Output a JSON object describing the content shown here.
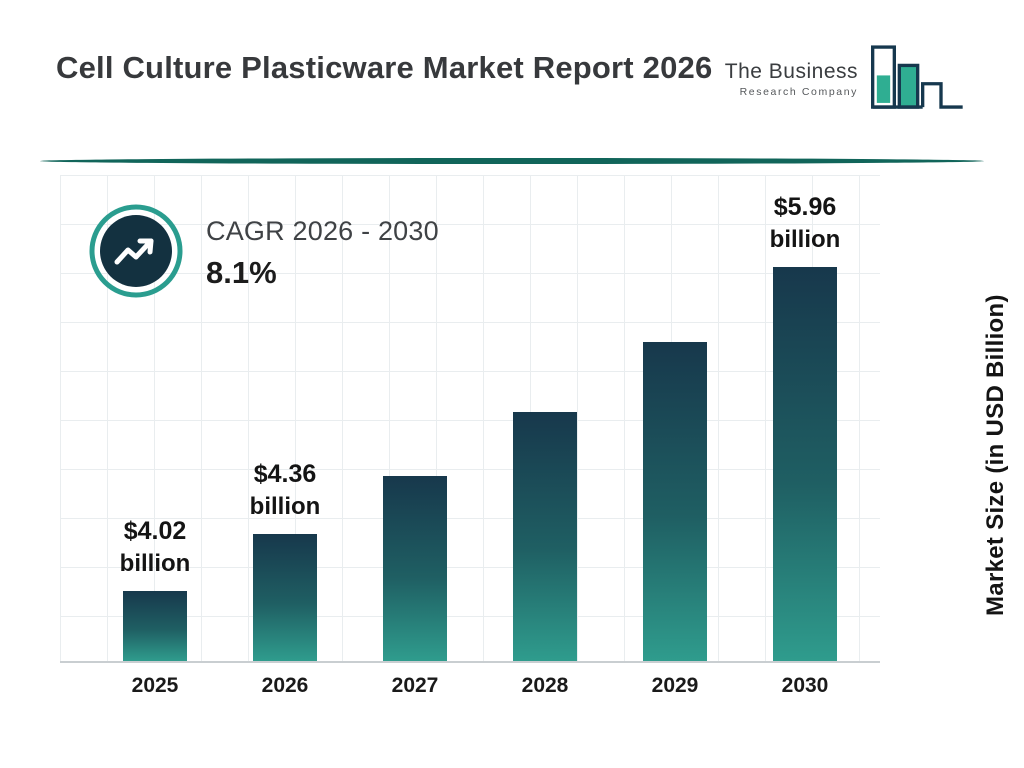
{
  "header": {
    "title": "Cell Culture Plasticware Market Report 2026"
  },
  "logo": {
    "line1": "The Business",
    "line2": "Research Company"
  },
  "cagr": {
    "label": "CAGR 2026 - 2030",
    "value": "8.1%"
  },
  "ylabel": "Market Size (in USD Billion)",
  "colors": {
    "accent_teal": "#2a9d8f",
    "dark_navy": "#17384c",
    "bar_gradient_top": "#17384c",
    "bar_gradient_bottom": "#2f9c8d",
    "divider": "#11655a"
  },
  "chart_data": {
    "type": "bar",
    "title": "Cell Culture Plasticware Market Report 2026",
    "xlabel": "",
    "ylabel": "Market Size (in USD Billion)",
    "categories": [
      "2025",
      "2026",
      "2027",
      "2028",
      "2029",
      "2030"
    ],
    "values": [
      4.02,
      4.36,
      4.71,
      5.09,
      5.51,
      5.96
    ],
    "labels": [
      {
        "amount": "$4.02",
        "unit": "billion"
      },
      {
        "amount": "$4.36",
        "unit": "billion"
      },
      null,
      null,
      null,
      {
        "amount": "$5.96",
        "unit": "billion"
      }
    ],
    "ylim": [
      3.6,
      6.1
    ],
    "grid": true,
    "legend": false,
    "annotation": "CAGR 2026 - 2030: 8.1%"
  }
}
